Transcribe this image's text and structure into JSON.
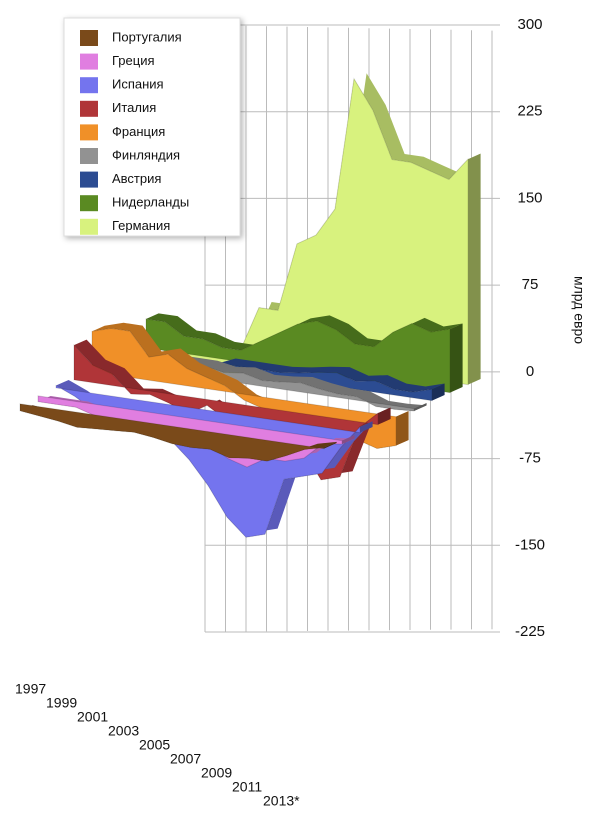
{
  "chart_data": {
    "type": "area3d",
    "y_label": "млрд евро",
    "categories": [
      "1997",
      null,
      "1999",
      null,
      "2001",
      null,
      "2003",
      null,
      "2005",
      null,
      "2007",
      null,
      "2009",
      null,
      "2011",
      null,
      "2013*"
    ],
    "ylim": [
      -225,
      300
    ],
    "yticks": [
      -225,
      -150,
      -75,
      0,
      75,
      150,
      225,
      300
    ],
    "grid": true,
    "legend": "top-left",
    "series": [
      {
        "name": "Португалия",
        "color": "#7a4a1a",
        "values": [
          -6,
          -8,
          -10,
          -13,
          -12,
          -11,
          -10,
          -12,
          -15,
          -16,
          -15,
          -20,
          -18,
          -18,
          -11,
          -3,
          1
        ]
      },
      {
        "name": "Греция",
        "color": "#e07ee0",
        "values": [
          -5,
          -5,
          -5,
          -10,
          -10,
          -10,
          -10,
          -10,
          -15,
          -20,
          -30,
          -35,
          -25,
          -25,
          -20,
          -5,
          -3
        ]
      },
      {
        "name": "Испания",
        "color": "#7474ee",
        "values": [
          2,
          -5,
          -15,
          -25,
          -25,
          -25,
          -30,
          -45,
          -65,
          -90,
          -105,
          -100,
          -50,
          -45,
          -40,
          -15,
          5
        ]
      },
      {
        "name": "Италия",
        "color": "#b03538",
        "values": [
          30,
          15,
          10,
          -5,
          -3,
          -8,
          -15,
          -5,
          -15,
          -25,
          -25,
          -35,
          -30,
          -55,
          -50,
          -5,
          10
        ]
      },
      {
        "name": "Франция",
        "color": "#f09028",
        "values": [
          35,
          40,
          40,
          20,
          25,
          15,
          10,
          5,
          -5,
          -10,
          -15,
          -20,
          -15,
          -15,
          -25,
          -30,
          -25
        ]
      },
      {
        "name": "Финляндия",
        "color": "#929292",
        "values": [
          6,
          7,
          8,
          10,
          10,
          10,
          7,
          9,
          5,
          6,
          8,
          5,
          3,
          3,
          -3,
          -3,
          -2
        ]
      },
      {
        "name": "Австрия",
        "color": "#2c4c92",
        "values": [
          -5,
          -5,
          -3,
          -1,
          -2,
          5,
          5,
          5,
          5,
          7,
          10,
          12,
          7,
          10,
          5,
          5,
          10
        ]
      },
      {
        "name": "Нидерланды",
        "color": "#5a8a22",
        "values": [
          25,
          25,
          15,
          15,
          10,
          10,
          20,
          30,
          40,
          45,
          40,
          30,
          30,
          45,
          55,
          50,
          55
        ]
      },
      {
        "name": "Германия",
        "color": "#d8f27e",
        "values": [
          -10,
          -15,
          -25,
          -35,
          0,
          40,
          40,
          100,
          110,
          135,
          250,
          225,
          185,
          185,
          180,
          175,
          195
        ]
      }
    ]
  }
}
